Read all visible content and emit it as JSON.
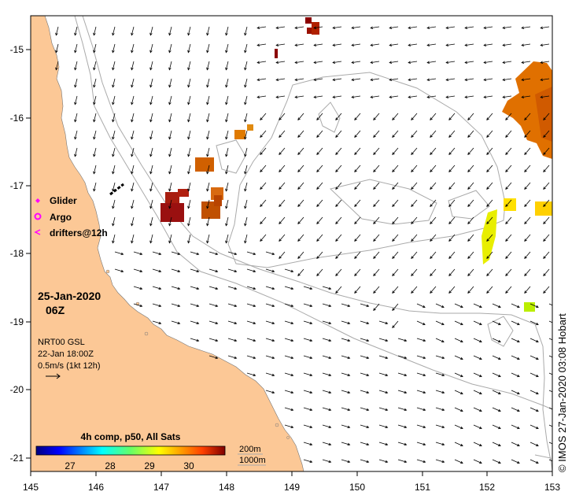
{
  "map": {
    "lon_range": [
      145,
      153
    ],
    "lat_range": [
      -21.2,
      -14.5
    ],
    "x_ticks": [
      "145",
      "146",
      "147",
      "148",
      "149",
      "150",
      "151",
      "152",
      "153"
    ],
    "y_ticks": [
      "-15",
      "-16",
      "-17",
      "-18",
      "-19",
      "-20",
      "-21"
    ],
    "colors": {
      "land": "#fcc896",
      "ocean": "#ffffff",
      "contour": "#aaaaaa",
      "arrow": "#000000"
    }
  },
  "legend": {
    "glider": "Glider",
    "argo": "Argo",
    "drifters": "drifters@12h",
    "glider_color": "#ff00ff",
    "argo_color": "#ff00ff",
    "drifter_color": "#ff00ff"
  },
  "date": {
    "day": "25-Jan-2020",
    "time": "06Z"
  },
  "current_info": {
    "model": "NRT00 GSL",
    "time": "22-Jan 18:00Z",
    "scale": "0.5m/s (1kt 12h)"
  },
  "colorbar": {
    "title": "4h comp, p50, All Sats",
    "ticks": [
      "27",
      "28",
      "29",
      "30"
    ],
    "min": 26.5,
    "max": 31.0
  },
  "isobaths": {
    "shallow": "200m",
    "deep": "1000m"
  },
  "credit": "© IMOS 27-Jan-2020 03:08 Hobart"
}
